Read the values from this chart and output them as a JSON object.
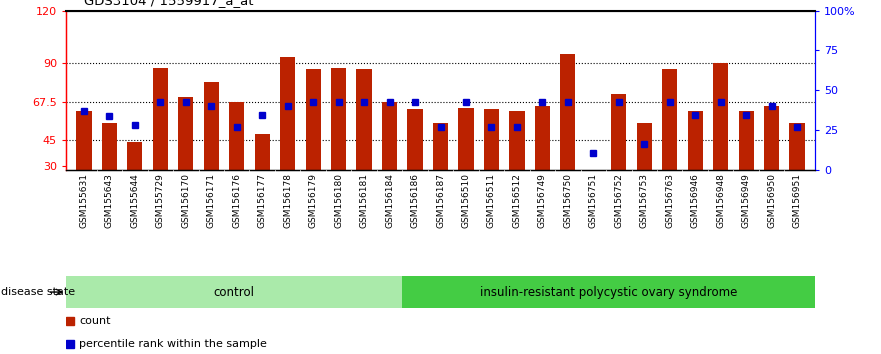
{
  "title": "GDS3104 / 1559917_a_at",
  "samples": [
    "GSM155631",
    "GSM155643",
    "GSM155644",
    "GSM155729",
    "GSM156170",
    "GSM156171",
    "GSM156176",
    "GSM156177",
    "GSM156178",
    "GSM156179",
    "GSM156180",
    "GSM156181",
    "GSM156184",
    "GSM156186",
    "GSM156187",
    "GSM156510",
    "GSM156511",
    "GSM156512",
    "GSM156749",
    "GSM156750",
    "GSM156751",
    "GSM156752",
    "GSM156753",
    "GSM156763",
    "GSM156946",
    "GSM156948",
    "GSM156949",
    "GSM156950",
    "GSM156951"
  ],
  "red_values": [
    62,
    55,
    44,
    87,
    70,
    79,
    67,
    49,
    93,
    86,
    87,
    86,
    67,
    63,
    55,
    64,
    63,
    62,
    65,
    95,
    28,
    72,
    55,
    86,
    62,
    90,
    62,
    65,
    55
  ],
  "blue_values": [
    62,
    59,
    54,
    67,
    67,
    65,
    53,
    60,
    65,
    67,
    67,
    67,
    67,
    67,
    53,
    67,
    53,
    53,
    67,
    67,
    38,
    67,
    43,
    67,
    60,
    67,
    60,
    65,
    53
  ],
  "control_count": 13,
  "disease_count": 16,
  "group1_label": "control",
  "group2_label": "insulin-resistant polycystic ovary syndrome",
  "yticks_left": [
    30,
    45,
    67.5,
    90,
    120
  ],
  "yticks_right_pct": [
    0,
    25,
    50,
    75,
    100
  ],
  "yticks_right_labels": [
    "0",
    "25",
    "50",
    "75",
    "100%"
  ],
  "ymin": 28,
  "ymax": 120,
  "bar_color": "#bb2200",
  "blue_color": "#0000cc",
  "legend_count": "count",
  "legend_pct": "percentile rank within the sample",
  "disease_state_label": "disease state"
}
